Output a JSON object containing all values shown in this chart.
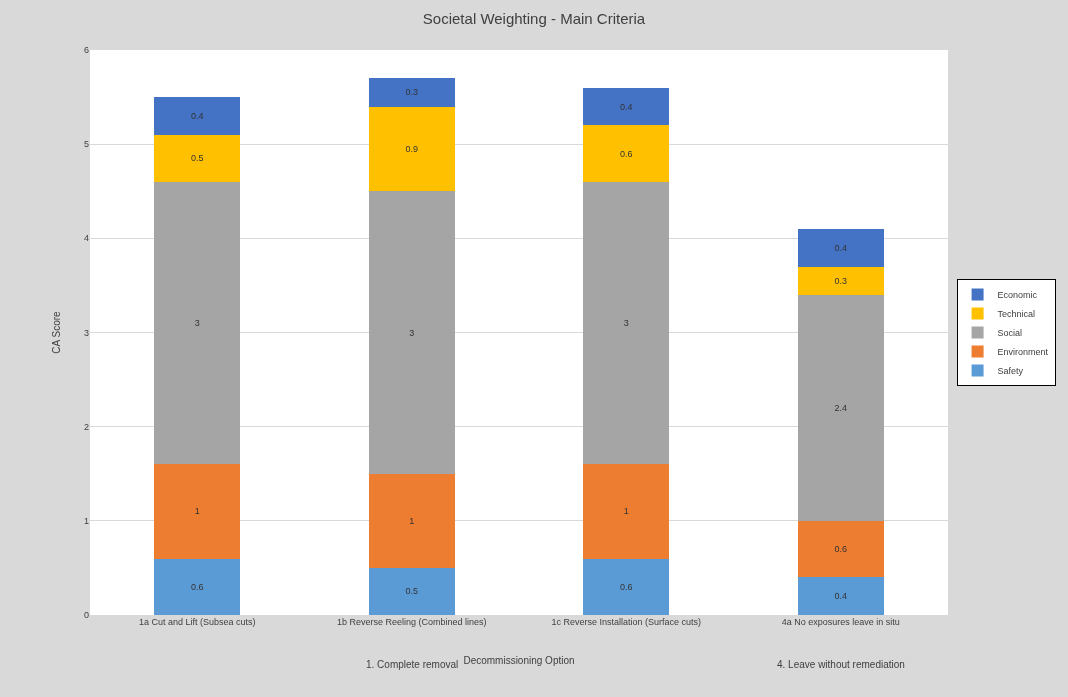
{
  "chart_data": {
    "type": "bar",
    "title": "Societal Weighting - Main Criteria",
    "xlabel": "Decommissioning Option",
    "ylabel": "CA Score",
    "categories": [
      "1a Cut and Lift (Subsea cuts)",
      "1b Reverse Reeling (Combined lines)",
      "1c Reverse Installation (Surface cuts)",
      "4a No exposures leave in situ"
    ],
    "series": [
      {
        "name": "Safety",
        "color": "#5b9bd5",
        "values": [
          0.6,
          0.5,
          0.6,
          0.4
        ]
      },
      {
        "name": "Environment",
        "color": "#ed7d31",
        "values": [
          1,
          1,
          1,
          0.6
        ]
      },
      {
        "name": "Social",
        "color": "#a5a5a5",
        "values": [
          3,
          3,
          3,
          2.4
        ]
      },
      {
        "name": "Technical",
        "color": "#ffc000",
        "values": [
          0.5,
          0.9,
          0.6,
          0.3
        ]
      },
      {
        "name": "Economic",
        "color": "#4472c4",
        "values": [
          0.4,
          0.3,
          0.4,
          0.4
        ]
      }
    ],
    "stacked": true,
    "data_labels": true,
    "ylim": [
      0,
      6
    ],
    "yticks": [
      0,
      1,
      2,
      3,
      4,
      5,
      6
    ],
    "grid": "y",
    "legend": "right",
    "annotations": [
      "1. Complete removal",
      "4. Leave without remediation"
    ]
  }
}
